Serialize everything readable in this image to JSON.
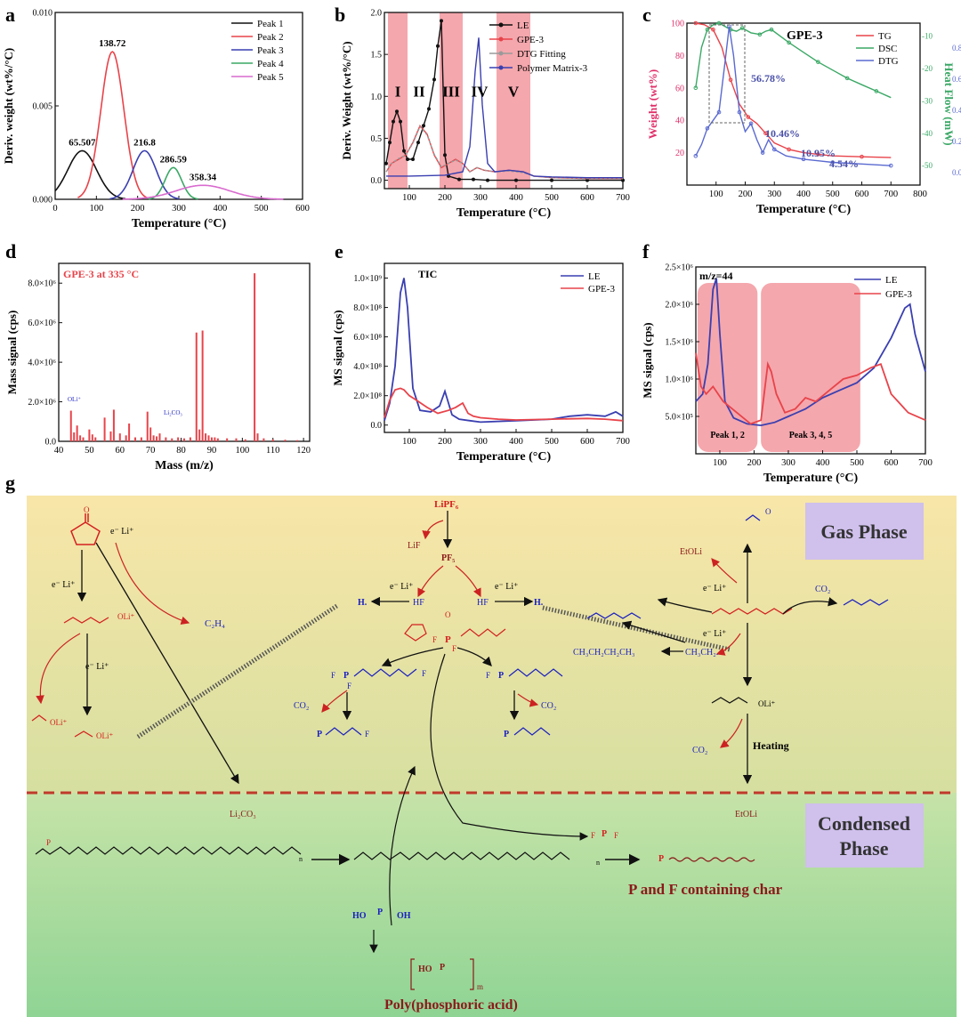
{
  "panels": {
    "a": {
      "letter": "a"
    },
    "b": {
      "letter": "b"
    },
    "c": {
      "letter": "c"
    },
    "d": {
      "letter": "d"
    },
    "e": {
      "letter": "e"
    },
    "f": {
      "letter": "f"
    },
    "g": {
      "letter": "g"
    }
  },
  "colors": {
    "black": "#111111",
    "red": "#e8434a",
    "blue": "#3a3fb0",
    "green": "#3aa865",
    "pink": "#d96bcf",
    "shade": "#f08a92",
    "pinkAxis": "#e0306a",
    "greenAxis": "#3aa865",
    "blueAxis": "#5a6ad0",
    "mol_red": "#d42020",
    "mol_blue": "#1a1fc0",
    "dark_red": "#8b1a1a"
  },
  "chart_data": [
    {
      "panel": "a",
      "type": "line",
      "xlabel": "Temperature (°C)",
      "ylabel": "Deriv. weight (wt%/°C)",
      "xlim": [
        0,
        600
      ],
      "ylim": [
        0,
        0.01
      ],
      "xticks": [
        "0",
        "100",
        "200",
        "300",
        "400",
        "500",
        "600"
      ],
      "yticks": [
        "0.000",
        "0.005",
        "0.010"
      ],
      "legend_position": "top-right",
      "series": [
        {
          "name": "Peak 1",
          "color": "#111111",
          "center": 65.507,
          "height": 0.0026,
          "width": 35
        },
        {
          "name": "Peak 2",
          "color": "#e8434a",
          "center": 138.72,
          "height": 0.0079,
          "width": 28
        },
        {
          "name": "Peak 3",
          "color": "#3a3fb0",
          "center": 216.8,
          "height": 0.0026,
          "width": 28
        },
        {
          "name": "Peak 4",
          "color": "#3aa865",
          "center": 286.59,
          "height": 0.0017,
          "width": 20
        },
        {
          "name": "Peak 5",
          "color": "#d96bcf",
          "center": 358.34,
          "height": 0.00075,
          "width": 65
        }
      ],
      "annotations": [
        "65.507",
        "138.72",
        "216.8",
        "286.59",
        "358.34"
      ]
    },
    {
      "panel": "b",
      "type": "line",
      "xlabel": "Temperature (°C)",
      "ylabel": "Deriv. Weight (wt%/°C)",
      "xlim": [
        30,
        700
      ],
      "ylim": [
        -0.1,
        2.0
      ],
      "xticks": [
        "100",
        "200",
        "300",
        "400",
        "500",
        "600",
        "700"
      ],
      "yticks": [
        "0.0",
        "0.5",
        "1.0",
        "1.5",
        "2.0"
      ],
      "legend_position": "top-right",
      "regions": [
        {
          "label": "I",
          "from": 40,
          "to": 95
        },
        {
          "label": "II",
          "from": 95,
          "to": 160
        },
        {
          "label": "III",
          "from": 185,
          "to": 250
        },
        {
          "label": "IV",
          "from": 250,
          "to": 345
        },
        {
          "label": "V",
          "from": 345,
          "to": 440
        }
      ],
      "series": [
        {
          "name": "LE",
          "color": "#111111",
          "x": [
            35,
            45,
            55,
            65,
            75,
            85,
            95,
            110,
            125,
            140,
            155,
            170,
            180,
            190,
            200,
            210,
            240,
            280,
            320,
            400,
            500,
            600,
            700
          ],
          "y": [
            0.2,
            0.45,
            0.7,
            0.82,
            0.7,
            0.35,
            0.25,
            0.25,
            0.45,
            0.65,
            0.85,
            1.2,
            1.6,
            1.9,
            0.3,
            0.05,
            0.01,
            0.01,
            0.0,
            0.0,
            0.0,
            0.0,
            0.0
          ]
        },
        {
          "name": "GPE-3",
          "color": "#e8434a",
          "x": [
            35,
            50,
            70,
            90,
            110,
            130,
            150,
            170,
            190,
            210,
            230,
            250,
            270,
            290,
            310,
            340,
            380,
            420,
            450,
            500,
            600,
            700
          ],
          "y": [
            0.1,
            0.2,
            0.25,
            0.3,
            0.45,
            0.65,
            0.55,
            0.3,
            0.15,
            0.2,
            0.25,
            0.2,
            0.1,
            0.15,
            0.12,
            0.1,
            0.12,
            0.1,
            0.05,
            0.03,
            0.02,
            0.02
          ]
        },
        {
          "name": "DTG Fitting",
          "color": "#9a9a9a",
          "x": [
            35,
            50,
            70,
            90,
            110,
            130,
            150,
            170,
            190,
            210,
            230,
            250,
            270,
            290,
            310,
            340,
            380,
            420,
            450,
            500,
            600,
            700
          ],
          "y": [
            0.1,
            0.2,
            0.26,
            0.3,
            0.44,
            0.64,
            0.54,
            0.31,
            0.16,
            0.2,
            0.24,
            0.2,
            0.1,
            0.15,
            0.12,
            0.1,
            0.11,
            0.09,
            0.05,
            0.03,
            0.02,
            0.02
          ]
        },
        {
          "name": "Polymer Matrix-3",
          "color": "#3a3fb0",
          "x": [
            35,
            100,
            200,
            250,
            270,
            285,
            295,
            305,
            320,
            340,
            380,
            420,
            450,
            500,
            600,
            700
          ],
          "y": [
            0.05,
            0.05,
            0.06,
            0.1,
            0.4,
            1.3,
            1.7,
            0.9,
            0.2,
            0.1,
            0.12,
            0.1,
            0.05,
            0.04,
            0.03,
            0.03
          ]
        }
      ]
    },
    {
      "panel": "c",
      "type": "line",
      "title": "GPE-3",
      "xlabel": "Temperature (°C)",
      "ylabel": "Weight (wt%)",
      "ylabel2": "Heat Flow (mW)",
      "ylabel3": "Deriv. Weight (wt%/°C)",
      "xlim": [
        0,
        800
      ],
      "ylim": [
        0,
        100
      ],
      "xticks": [
        "100",
        "200",
        "300",
        "400",
        "500",
        "600",
        "700",
        "800"
      ],
      "yticks": [
        "20",
        "40",
        "60",
        "80",
        "100"
      ],
      "y2ticks": [
        "-50",
        "-40",
        "-30",
        "-20",
        "-10"
      ],
      "y3ticks": [
        "0.0",
        "0.2",
        "0.4",
        "0.6",
        "0.8"
      ],
      "legend_position": "top-right",
      "annotations": [
        "56.78%",
        "10.46%",
        "10.95%",
        "4.54%"
      ],
      "series": [
        {
          "name": "TG",
          "color": "#e8434a",
          "x": [
            30,
            60,
            90,
            120,
            150,
            180,
            210,
            240,
            270,
            300,
            350,
            400,
            450,
            500,
            600,
            700
          ],
          "y": [
            100,
            99,
            96,
            85,
            65,
            50,
            42,
            38,
            32,
            26,
            22,
            20,
            19,
            18,
            17.5,
            17
          ]
        },
        {
          "name": "DSC",
          "color": "#3aa865",
          "x": [
            30,
            50,
            70,
            90,
            110,
            130,
            150,
            170,
            190,
            220,
            250,
            270,
            290,
            320,
            350,
            400,
            450,
            500,
            550,
            600,
            650,
            700
          ],
          "y": [
            60,
            85,
            96,
            99,
            100,
            98,
            96,
            95,
            97,
            94,
            93,
            95,
            96,
            92,
            88,
            82,
            76,
            71,
            66,
            62,
            58,
            54
          ]
        },
        {
          "name": "DTG",
          "color": "#5a6ad0",
          "x": [
            30,
            50,
            70,
            90,
            110,
            130,
            145,
            160,
            180,
            200,
            220,
            240,
            260,
            280,
            300,
            340,
            400,
            450,
            500,
            600,
            700
          ],
          "y": [
            18,
            25,
            35,
            40,
            45,
            75,
            98,
            80,
            45,
            33,
            38,
            28,
            20,
            28,
            22,
            18,
            16,
            15,
            14,
            13,
            12
          ]
        }
      ]
    },
    {
      "panel": "d",
      "type": "bar",
      "title": "GPE-3 at 335 °C",
      "xlabel": "Mass (m/z)",
      "ylabel": "Mass signal (cps)",
      "xlim": [
        40,
        122
      ],
      "ylim": [
        0,
        9000000
      ],
      "xticks": [
        "40",
        "50",
        "60",
        "70",
        "80",
        "90",
        "100",
        "110",
        "120"
      ],
      "yticks": [
        "0.0",
        "2.0×10⁶",
        "4.0×10⁶",
        "6.0×10⁶",
        "8.0×10⁶"
      ],
      "x": [
        44,
        45,
        46,
        47,
        48,
        50,
        51,
        52,
        55,
        57,
        58,
        60,
        62,
        63,
        65,
        67,
        69,
        70,
        71,
        72,
        73,
        75,
        77,
        79,
        81,
        83,
        85,
        86,
        87,
        88,
        89,
        90,
        91,
        92,
        95,
        98,
        101,
        104,
        105,
        107,
        110,
        114,
        118
      ],
      "values": [
        1550000,
        450000,
        800000,
        300000,
        200000,
        600000,
        350000,
        200000,
        1200000,
        500000,
        1600000,
        400000,
        300000,
        900000,
        200000,
        200000,
        1500000,
        700000,
        300000,
        250000,
        400000,
        200000,
        150000,
        200000,
        150000,
        200000,
        5500000,
        600000,
        5600000,
        400000,
        300000,
        200000,
        200000,
        150000,
        150000,
        150000,
        100000,
        8500000,
        400000,
        150000,
        100000,
        80000,
        60000
      ],
      "annotations": [
        "OLi⁺",
        "Li₂CO₃"
      ]
    },
    {
      "panel": "e",
      "type": "line",
      "title": "TIC",
      "xlabel": "Temperature (°C)",
      "ylabel": "MS signal (cps)",
      "xlim": [
        30,
        700
      ],
      "ylim": [
        -50000000,
        1100000000
      ],
      "xticks": [
        "100",
        "200",
        "300",
        "400",
        "500",
        "600",
        "700"
      ],
      "yticks": [
        "0.0",
        "2.0×10⁸",
        "4.0×10⁸",
        "6.0×10⁸",
        "8.0×10⁸",
        "1.0×10⁹"
      ],
      "legend_position": "top-right",
      "series": [
        {
          "name": "LE",
          "color": "#3a3fb0",
          "x": [
            30,
            45,
            60,
            75,
            85,
            95,
            110,
            130,
            160,
            185,
            200,
            210,
            220,
            240,
            270,
            300,
            400,
            500,
            550,
            600,
            650,
            680,
            700
          ],
          "y": [
            30000000,
            150000000,
            400000000,
            900000000,
            1000000000,
            800000000,
            250000000,
            100000000,
            90000000,
            130000000,
            230000000,
            150000000,
            70000000,
            40000000,
            30000000,
            20000000,
            30000000,
            40000000,
            60000000,
            70000000,
            60000000,
            90000000,
            60000000
          ]
        },
        {
          "name": "GPE-3",
          "color": "#e8434a",
          "x": [
            30,
            45,
            60,
            75,
            85,
            100,
            120,
            150,
            180,
            210,
            230,
            250,
            265,
            280,
            300,
            350,
            400,
            500,
            600,
            650,
            700
          ],
          "y": [
            50000000,
            170000000,
            240000000,
            250000000,
            240000000,
            200000000,
            170000000,
            120000000,
            80000000,
            100000000,
            120000000,
            150000000,
            80000000,
            60000000,
            50000000,
            40000000,
            35000000,
            40000000,
            45000000,
            40000000,
            30000000
          ]
        }
      ]
    },
    {
      "panel": "f",
      "type": "line",
      "title": "m/z=44",
      "xlabel": "Temperature (°C)",
      "ylabel": "MS signal (cps)",
      "xlim": [
        30,
        700
      ],
      "ylim": [
        0,
        2500000
      ],
      "xticks": [
        "100",
        "200",
        "300",
        "400",
        "500",
        "600",
        "700"
      ],
      "yticks": [
        "5.0×10⁵",
        "1.0×10⁶",
        "1.5×10⁶",
        "2.0×10⁶",
        "2.5×10⁶"
      ],
      "legend_position": "top-right",
      "regions": [
        {
          "label": "Peak 1, 2",
          "from": 35,
          "to": 210
        },
        {
          "label": "Peak 3, 4, 5",
          "from": 220,
          "to": 510
        }
      ],
      "series": [
        {
          "name": "LE",
          "color": "#3a3fb0",
          "x": [
            30,
            50,
            65,
            80,
            90,
            100,
            115,
            140,
            180,
            220,
            260,
            300,
            350,
            400,
            450,
            500,
            550,
            600,
            640,
            655,
            670,
            700
          ],
          "y": [
            700000,
            800000,
            1200000,
            2200000,
            2350000,
            1600000,
            700000,
            480000,
            400000,
            380000,
            420000,
            500000,
            600000,
            750000,
            850000,
            950000,
            1150000,
            1550000,
            1950000,
            2000000,
            1600000,
            1100000
          ]
        },
        {
          "name": "GPE-3",
          "color": "#e8434a",
          "x": [
            30,
            45,
            60,
            80,
            110,
            150,
            190,
            220,
            240,
            250,
            265,
            290,
            320,
            350,
            380,
            420,
            460,
            500,
            540,
            570,
            600,
            650,
            700
          ],
          "y": [
            1350000,
            900000,
            800000,
            900000,
            700000,
            550000,
            400000,
            450000,
            1200000,
            1100000,
            800000,
            550000,
            600000,
            750000,
            700000,
            850000,
            1000000,
            1050000,
            1150000,
            1200000,
            800000,
            550000,
            450000
          ]
        }
      ]
    }
  ],
  "scheme": {
    "gas_phase": "Gas Phase",
    "condensed_phase": "Condensed Phase",
    "labels": {
      "lipf6": "LiPF₆",
      "lif": "LiF",
      "pf5": "PF₅",
      "eli1": "e⁻ Li⁺",
      "eli2": "e⁻ Li⁺",
      "eli3": "e⁻ Li⁺",
      "eli4": "e⁻ Li⁺",
      "eli5": "e⁻ Li⁺",
      "eli6": "e⁻ Li⁺",
      "eli7": "e⁻ Li⁺",
      "c2h4": "C₂H₄",
      "hf1": "HF",
      "hf2": "HF",
      "h1": "H.",
      "h2": "H.",
      "co2_1": "CO₂",
      "co2_2": "CO₂",
      "co2_3": "CO₂",
      "co2_4": "CO₂",
      "etoli_top": "EtOLi",
      "butane": "CH₃CH₂CH₂CH₃",
      "ethyl": "CH₃CH₂.",
      "heating": "Heating",
      "li2co3": "Li₂CO₃",
      "etoli_bottom": "EtOLi",
      "char": "P and F containing char",
      "polyacid": "Poly(phosphoric acid)",
      "oli1": "OLi⁺",
      "oli2": "OLi⁺",
      "oli3": "OLi⁺",
      "oli4": "OLi⁺",
      "p": "P",
      "f": "F",
      "o": "O",
      "ho": "HO",
      "oh": "OH",
      "m": "m",
      "n": "n"
    }
  }
}
